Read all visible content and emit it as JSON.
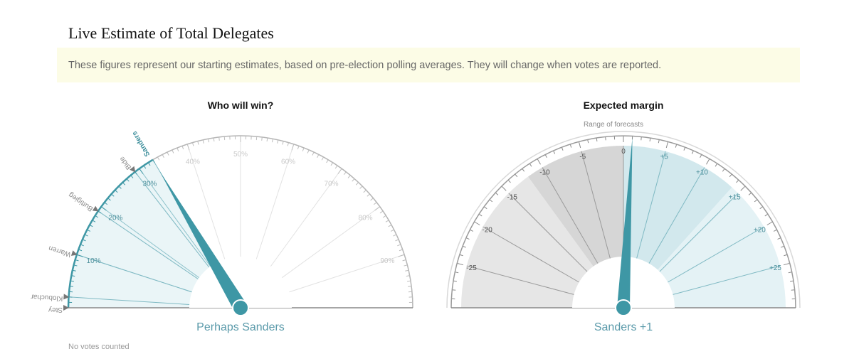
{
  "page_title": "Live Estimate of Total Delegates",
  "notice": "These figures represent our starting estimates, based on pre-election polling averages. They will change when votes are reported.",
  "footnote": "No votes counted",
  "colors": {
    "teal": "#3e97a5",
    "teal_light": "#eaf5f7",
    "grey_zone": "#e6e6e6",
    "grey_dark_zone": "#d6d6d6",
    "blue_zone": "#d2e8ed",
    "blue_light_zone": "#e4f2f5"
  },
  "chart_data": [
    {
      "type": "gauge",
      "title": "Who will win?",
      "label": "Perhaps Sanders",
      "scale": [
        0,
        100
      ],
      "tick_labels": [
        "10%",
        "20%",
        "30%",
        "40%",
        "50%",
        "60%",
        "70%",
        "80%",
        "90%"
      ],
      "tick_values": [
        10,
        20,
        30,
        40,
        50,
        60,
        70,
        80,
        90
      ],
      "candidates": [
        {
          "name": "Steyer",
          "label": "Stey",
          "value": 0
        },
        {
          "name": "Klobuchar",
          "label": "Klobuchar",
          "value": 2
        },
        {
          "name": "Warren",
          "label": "Warren",
          "value": 10
        },
        {
          "name": "Buttigieg",
          "label": "Buttigieg",
          "value": 19
        },
        {
          "name": "Biden",
          "label": "Bide",
          "value": 29
        },
        {
          "name": "Sanders",
          "label": "Sanders",
          "value": 33
        }
      ],
      "leader": "Sanders",
      "needle_value": 33
    },
    {
      "type": "gauge",
      "title": "Expected margin",
      "label": "Sanders +1",
      "range_label": "Range of forecasts",
      "scale": [
        -30,
        30
      ],
      "tick_labels": [
        "-25",
        "-20",
        "-15",
        "-10",
        "-5",
        "0",
        "+5",
        "+10",
        "+15",
        "+20",
        "+25"
      ],
      "tick_values": [
        -25,
        -20,
        -15,
        -10,
        -5,
        0,
        5,
        10,
        15,
        20,
        25
      ],
      "bands": [
        {
          "from": -30,
          "to": -12,
          "color": "#e6e6e6"
        },
        {
          "from": -12,
          "to": 0,
          "color": "#d6d6d6"
        },
        {
          "from": 0,
          "to": 14,
          "color": "#d2e8ed"
        },
        {
          "from": 14,
          "to": 30,
          "color": "#e4f2f5"
        }
      ],
      "needle_value": 1
    }
  ]
}
